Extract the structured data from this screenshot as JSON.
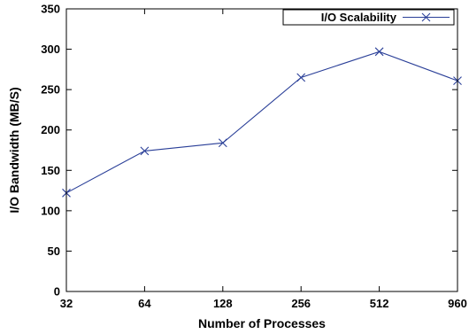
{
  "chart_data": {
    "type": "line",
    "title": "",
    "xlabel": "Number of Processes",
    "ylabel": "I/O Bandwidth (MB/S)",
    "categories": [
      "32",
      "64",
      "128",
      "256",
      "512",
      "960"
    ],
    "ylim": [
      0,
      350
    ],
    "yticks": [
      0,
      50,
      100,
      150,
      200,
      250,
      300,
      350
    ],
    "grid": false,
    "legend_position": "top-right",
    "series": [
      {
        "name": "I/O Scalability",
        "color": "#2a3f98",
        "marker": "x",
        "values": [
          122,
          174,
          184,
          265,
          297,
          261
        ]
      }
    ]
  }
}
